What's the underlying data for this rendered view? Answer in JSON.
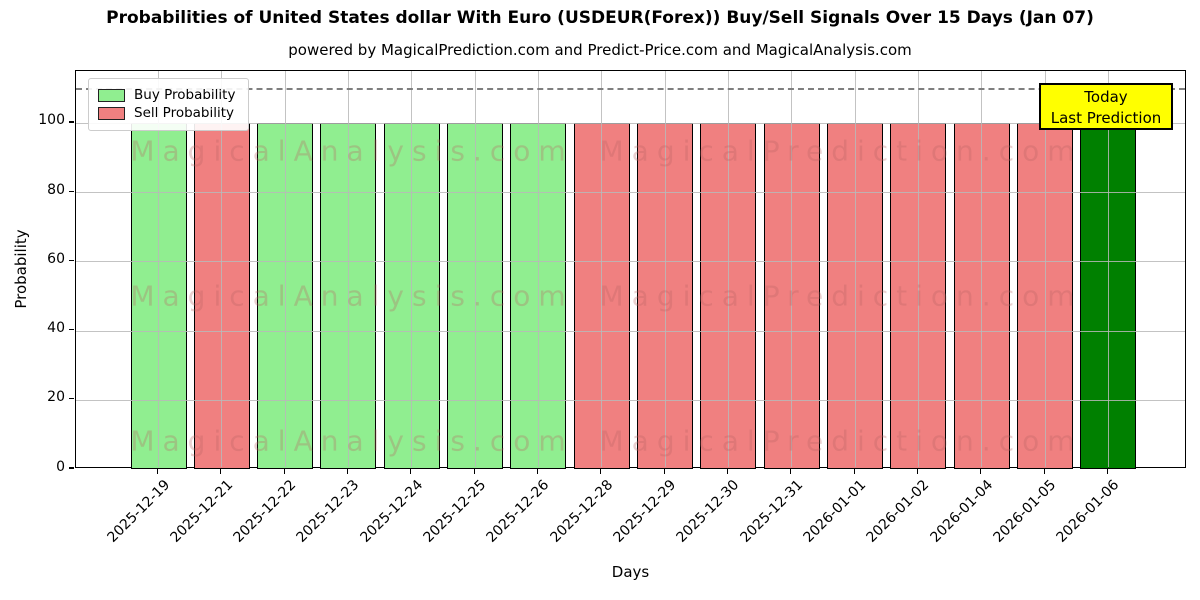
{
  "header": {
    "title": "Probabilities of United States dollar With Euro (USDEUR(Forex)) Buy/Sell Signals Over 15 Days (Jan 07)",
    "subtitle": "powered by MagicalPrediction.com and Predict-Price.com and MagicalAnalysis.com"
  },
  "legend": {
    "items": [
      {
        "label": "Buy Probability",
        "color": "#90ee90"
      },
      {
        "label": "Sell Probability",
        "color": "#f08080"
      }
    ]
  },
  "annotation_box": {
    "line1": "Today",
    "line2": "Last Prediction",
    "bg_color": "#ffff00"
  },
  "watermarks": {
    "left_text": "MagicalAnalysis.com",
    "right_text": "MagicalPrediction.com"
  },
  "axes": {
    "xlabel": "Days",
    "ylabel": "Probability",
    "yticks": [
      0,
      20,
      40,
      60,
      80,
      100
    ],
    "ylim": [
      0,
      115
    ],
    "dashed_line_y": 110,
    "grid": true
  },
  "chart_data": {
    "type": "bar",
    "title": "Probabilities of United States dollar With Euro (USDEUR(Forex)) Buy/Sell Signals Over 15 Days (Jan 07)",
    "xlabel": "Days",
    "ylabel": "Probability",
    "ylim": [
      0,
      115
    ],
    "legend_position": "upper left",
    "grid": true,
    "categories": [
      "2025-12-19",
      "2025-12-21",
      "2025-12-22",
      "2025-12-23",
      "2025-12-24",
      "2025-12-25",
      "2025-12-26",
      "2025-12-28",
      "2025-12-29",
      "2025-12-30",
      "2025-12-31",
      "2026-01-01",
      "2026-01-02",
      "2026-01-04",
      "2026-01-05",
      "2026-01-06"
    ],
    "series": [
      {
        "name": "Probability",
        "values": [
          100,
          100,
          100,
          100,
          100,
          100,
          100,
          100,
          100,
          100,
          100,
          100,
          100,
          100,
          100,
          100
        ]
      }
    ],
    "bar_signals": [
      "buy",
      "sell",
      "buy",
      "buy",
      "buy",
      "buy",
      "buy",
      "sell",
      "sell",
      "sell",
      "sell",
      "sell",
      "sell",
      "sell",
      "sell",
      "today"
    ],
    "colors": {
      "buy": "#90ee90",
      "sell": "#f08080",
      "today": "#008000",
      "bar_edge": "#000000",
      "annotation_bg": "#ffff00"
    }
  }
}
